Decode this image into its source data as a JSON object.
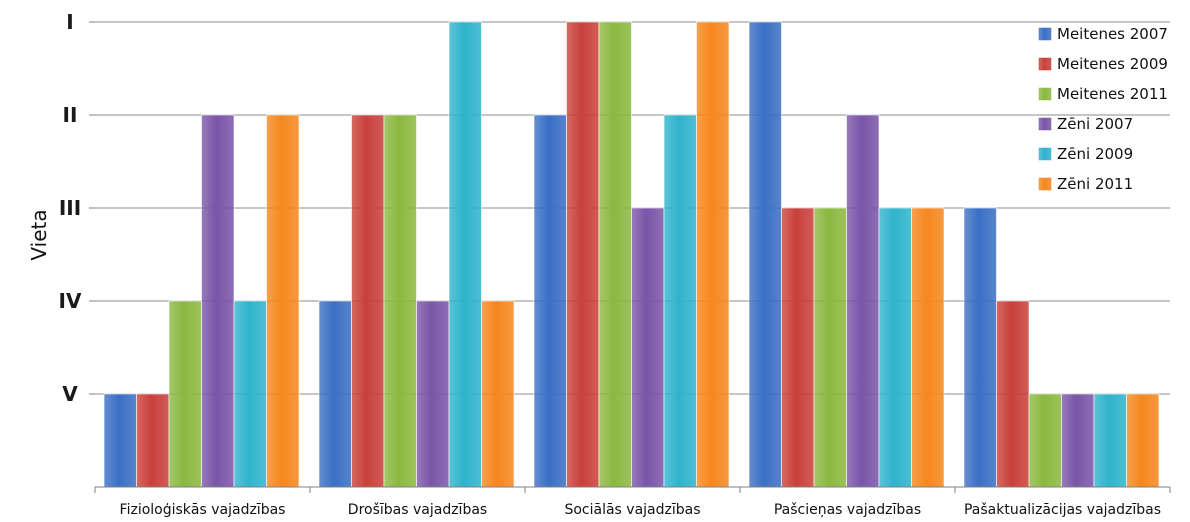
{
  "chart_data": {
    "type": "bar",
    "ylabel": "Vieta",
    "xlabel": "",
    "title": "",
    "y_axis_reversed": true,
    "yticks": [
      {
        "value": 1,
        "label": "I"
      },
      {
        "value": 2,
        "label": "II"
      },
      {
        "value": 3,
        "label": "III"
      },
      {
        "value": 4,
        "label": "IV"
      },
      {
        "value": 5,
        "label": "V"
      }
    ],
    "ylim": [
      1,
      6
    ],
    "grid": true,
    "legend_position": "top-right",
    "categories": [
      "Fizioloģiskās vajadzības",
      "Drošības vajadzības",
      "Sociālās vajadzības",
      "Pašcieņas vajadzības",
      "Pašaktualizācijas vajadzības"
    ],
    "series": [
      {
        "name": "Meitenes 2007",
        "color": "#3a6fc4",
        "values": [
          5,
          4,
          2,
          1,
          3
        ]
      },
      {
        "name": "Meitenes 2009",
        "color": "#c9403a",
        "values": [
          5,
          2,
          1,
          3,
          4
        ]
      },
      {
        "name": "Meitenes 2011",
        "color": "#8bb840",
        "values": [
          4,
          2,
          1,
          3,
          5
        ]
      },
      {
        "name": "Zēni 2007",
        "color": "#7a55a8",
        "values": [
          2,
          4,
          3,
          2,
          5
        ]
      },
      {
        "name": "Zēni 2009",
        "color": "#2fb3cc",
        "values": [
          4,
          1,
          2,
          3,
          5
        ]
      },
      {
        "name": "Zēni 2011",
        "color": "#f5871e",
        "values": [
          2,
          4,
          1,
          3,
          5
        ]
      }
    ]
  }
}
